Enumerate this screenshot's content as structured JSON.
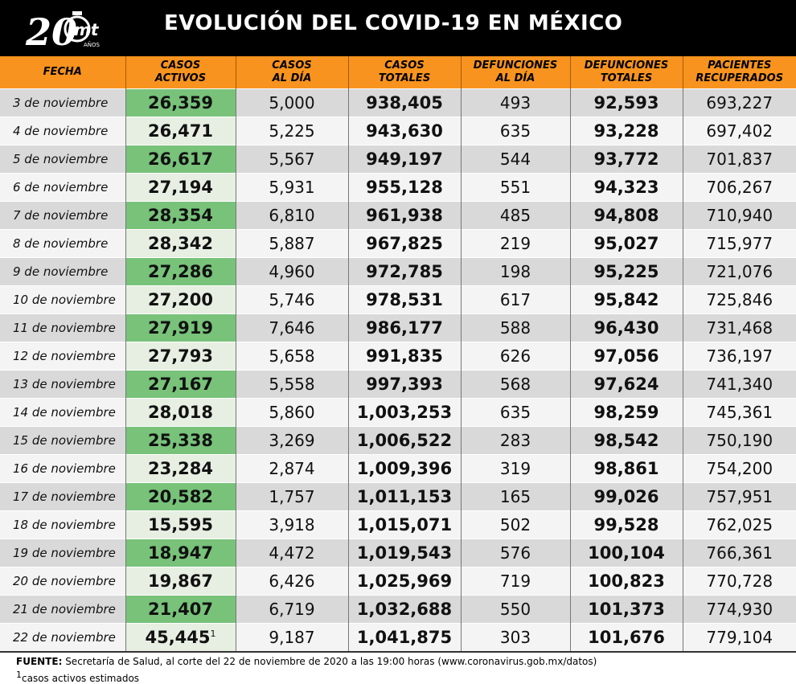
{
  "header": {
    "logo_number": "20",
    "logo_brand": "mt",
    "logo_sub": "AÑOS",
    "title": "EVOLUCIÓN DEL COVID-19 EN MÉXICO"
  },
  "table": {
    "columns": [
      [
        "FECHA"
      ],
      [
        "CASOS",
        "ACTIVOS"
      ],
      [
        "CASOS",
        "AL DÍA"
      ],
      [
        "CASOS",
        "TOTALES"
      ],
      [
        "DEFUNCIONES",
        "AL DÍA"
      ],
      [
        "DEFUNCIONES",
        "TOTALES"
      ],
      [
        "PACIENTES",
        "RECUPERADOS"
      ]
    ],
    "rows": [
      [
        "3 de noviembre",
        "26,359",
        "5,000",
        "938,405",
        "493",
        "92,593",
        "693,227"
      ],
      [
        "4 de noviembre",
        "26,471",
        "5,225",
        "943,630",
        "635",
        "93,228",
        "697,402"
      ],
      [
        "5 de noviembre",
        "26,617",
        "5,567",
        "949,197",
        "544",
        "93,772",
        "701,837"
      ],
      [
        "6 de noviembre",
        "27,194",
        "5,931",
        "955,128",
        "551",
        "94,323",
        "706,267"
      ],
      [
        "7 de noviembre",
        "28,354",
        "6,810",
        "961,938",
        "485",
        "94,808",
        "710,940"
      ],
      [
        "8 de noviembre",
        "28,342",
        "5,887",
        "967,825",
        "219",
        "95,027",
        "715,977"
      ],
      [
        "9 de noviembre",
        "27,286",
        "4,960",
        "972,785",
        "198",
        "95,225",
        "721,076"
      ],
      [
        "10 de noviembre",
        "27,200",
        "5,746",
        "978,531",
        "617",
        "95,842",
        "725,846"
      ],
      [
        "11 de noviembre",
        "27,919",
        "7,646",
        "986,177",
        "588",
        "96,430",
        "731,468"
      ],
      [
        "12 de noviembre",
        "27,793",
        "5,658",
        "991,835",
        "626",
        "97,056",
        "736,197"
      ],
      [
        "13 de noviembre",
        "27,167",
        "5,558",
        "997,393",
        "568",
        "97,624",
        "741,340"
      ],
      [
        "14 de noviembre",
        "28,018",
        "5,860",
        "1,003,253",
        "635",
        "98,259",
        "745,361"
      ],
      [
        "15 de noviembre",
        "25,338",
        "3,269",
        "1,006,522",
        "283",
        "98,542",
        "750,190"
      ],
      [
        "16 de noviembre",
        "23,284",
        "2,874",
        "1,009,396",
        "319",
        "98,861",
        "754,200"
      ],
      [
        "17 de noviembre",
        "20,582",
        "1,757",
        "1,011,153",
        "165",
        "99,026",
        "757,951"
      ],
      [
        "18 de noviembre",
        "15,595",
        "3,918",
        "1,015,071",
        "502",
        "99,528",
        "762,025"
      ],
      [
        "19 de noviembre",
        "18,947",
        "4,472",
        "1,019,543",
        "576",
        "100,104",
        "766,361"
      ],
      [
        "20 de noviembre",
        "19,867",
        "6,426",
        "1,025,969",
        "719",
        "100,823",
        "770,728"
      ],
      [
        "21 de noviembre",
        "21,407",
        "6,719",
        "1,032,688",
        "550",
        "101,373",
        "774,930"
      ],
      [
        "22 de noviembre",
        "45,445",
        "9,187",
        "1,041,875",
        "303",
        "101,676",
        "779,104"
      ]
    ],
    "last_row_superscript": "1"
  },
  "footer": {
    "source_label": "FUENTE:",
    "source_text": " Secretaría de Salud, al corte del 22 de noviembre de 2020 a las 19:00 horas (www.coronavirus.gob.mx/datos)",
    "note_marker": "1",
    "note_text": "casos activos estimados"
  },
  "colors": {
    "header_bg": "#000000",
    "column_header_bg": "#f7931e",
    "active_cases_highlight": "#78c27a",
    "row_dark": "#d9d9d9",
    "row_light": "#f4f4f4"
  }
}
